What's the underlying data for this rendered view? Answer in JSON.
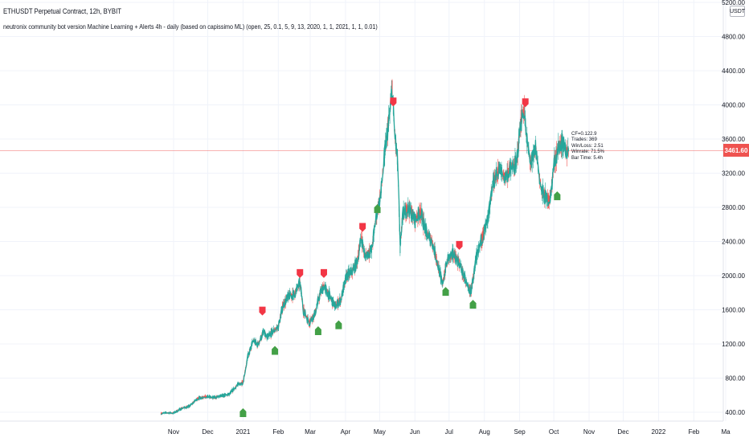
{
  "legend": {
    "title": "ETHUSDT Perpetual Contract, 12h, BYBIT",
    "indicator": "neutronix community bot version Machine Learning + Alerts 4h - daily (based on capissimo ML) (open, 25, 0.1, 5, 9, 13, 2020, 1, 1, 2021, 1, 1, 0.01)"
  },
  "price_axis": {
    "currency": "USDT",
    "last_price": "3461.60"
  },
  "stats": {
    "lines": [
      "CF=0.122.9",
      "Trades: 369",
      "Win/Loss: 2.51",
      "Winrate: 71.5%",
      "Bar Time: 5.4h"
    ]
  },
  "colors": {
    "background": "#ffffff",
    "series": "#26a69a",
    "up_candle": "#26a69a",
    "down_candle": "#ef5350",
    "sell_marker": "#f23645",
    "buy_marker": "#43a047",
    "last_price_line": "#ef5350",
    "axis_text": "#131722",
    "grid": "#f0f3fa"
  },
  "chart_data": {
    "type": "line",
    "title": "ETHUSDT Perpetual Contract, 12h, BYBIT",
    "xlabel": "",
    "ylabel": "",
    "ylim": [
      330,
      5200
    ],
    "grid": true,
    "y_ticks": [
      400,
      800,
      1200,
      1600,
      2000,
      2400,
      2800,
      3200,
      3600,
      4000,
      4400,
      4800,
      5200
    ],
    "y_tick_labels": [
      "400.00",
      "800.00",
      "1200.00",
      "1600.00",
      "2000.00",
      "2400.00",
      "2800.00",
      "3200.00",
      "3600.00",
      "4000.00",
      "4400.00",
      "4800.00",
      "5200.00"
    ],
    "x_ticks": [
      {
        "date": "2020-11-01",
        "label": "Nov"
      },
      {
        "date": "2020-12-01",
        "label": "Dec"
      },
      {
        "date": "2021-01-01",
        "label": "2021"
      },
      {
        "date": "2021-02-01",
        "label": "Feb"
      },
      {
        "date": "2021-03-01",
        "label": "Mar"
      },
      {
        "date": "2021-04-01",
        "label": "Apr"
      },
      {
        "date": "2021-05-01",
        "label": "May"
      },
      {
        "date": "2021-06-01",
        "label": "Jun"
      },
      {
        "date": "2021-07-01",
        "label": "Jul"
      },
      {
        "date": "2021-08-01",
        "label": "Aug"
      },
      {
        "date": "2021-09-01",
        "label": "Sep"
      },
      {
        "date": "2021-10-01",
        "label": "Oct"
      },
      {
        "date": "2021-11-01",
        "label": "Nov"
      },
      {
        "date": "2021-12-01",
        "label": "Dec"
      },
      {
        "date": "2022-01-01",
        "label": "2022"
      },
      {
        "date": "2022-02-01",
        "label": "Feb"
      },
      {
        "date": "2022-03-01",
        "label": "Ma"
      }
    ],
    "last_price": 3461.6,
    "series": [
      {
        "values": [
          [
            "2020-10-21",
            385
          ],
          [
            "2020-10-26",
            395
          ],
          [
            "2020-11-01",
            390
          ],
          [
            "2020-11-08",
            445
          ],
          [
            "2020-11-15",
            470
          ],
          [
            "2020-11-22",
            560
          ],
          [
            "2020-11-29",
            585
          ],
          [
            "2020-12-06",
            570
          ],
          [
            "2020-12-13",
            590
          ],
          [
            "2020-12-20",
            610
          ],
          [
            "2020-12-27",
            720
          ],
          [
            "2021-01-01",
            750
          ],
          [
            "2021-01-05",
            1040
          ],
          [
            "2021-01-10",
            1240
          ],
          [
            "2021-01-14",
            1190
          ],
          [
            "2021-01-19",
            1340
          ],
          [
            "2021-01-22",
            1270
          ],
          [
            "2021-01-26",
            1330
          ],
          [
            "2021-02-01",
            1400
          ],
          [
            "2021-02-05",
            1650
          ],
          [
            "2021-02-10",
            1760
          ],
          [
            "2021-02-15",
            1780
          ],
          [
            "2021-02-20",
            1920
          ],
          [
            "2021-02-23",
            1600
          ],
          [
            "2021-02-28",
            1450
          ],
          [
            "2021-03-05",
            1550
          ],
          [
            "2021-03-10",
            1800
          ],
          [
            "2021-03-13",
            1880
          ],
          [
            "2021-03-18",
            1760
          ],
          [
            "2021-03-23",
            1640
          ],
          [
            "2021-03-28",
            1720
          ],
          [
            "2021-04-02",
            2000
          ],
          [
            "2021-04-07",
            2050
          ],
          [
            "2021-04-11",
            2150
          ],
          [
            "2021-04-15",
            2450
          ],
          [
            "2021-04-18",
            2230
          ],
          [
            "2021-04-24",
            2300
          ],
          [
            "2021-04-28",
            2700
          ],
          [
            "2021-05-02",
            2950
          ],
          [
            "2021-05-06",
            3500
          ],
          [
            "2021-05-10",
            3900
          ],
          [
            "2021-05-12",
            4200
          ],
          [
            "2021-05-14",
            3700
          ],
          [
            "2021-05-17",
            3300
          ],
          [
            "2021-05-19",
            2300
          ],
          [
            "2021-05-21",
            2700
          ],
          [
            "2021-05-26",
            2800
          ],
          [
            "2021-06-01",
            2650
          ],
          [
            "2021-06-06",
            2750
          ],
          [
            "2021-06-11",
            2500
          ],
          [
            "2021-06-16",
            2400
          ],
          [
            "2021-06-20",
            2200
          ],
          [
            "2021-06-25",
            1900
          ],
          [
            "2021-06-30",
            2200
          ],
          [
            "2021-07-05",
            2250
          ],
          [
            "2021-07-10",
            2150
          ],
          [
            "2021-07-15",
            1950
          ],
          [
            "2021-07-20",
            1800
          ],
          [
            "2021-07-25",
            2200
          ],
          [
            "2021-07-30",
            2450
          ],
          [
            "2021-08-04",
            2650
          ],
          [
            "2021-08-09",
            3100
          ],
          [
            "2021-08-14",
            3250
          ],
          [
            "2021-08-19",
            3150
          ],
          [
            "2021-08-24",
            3250
          ],
          [
            "2021-08-29",
            3300
          ],
          [
            "2021-09-02",
            3800
          ],
          [
            "2021-09-05",
            3950
          ],
          [
            "2021-09-07",
            3600
          ],
          [
            "2021-09-11",
            3300
          ],
          [
            "2021-09-15",
            3500
          ],
          [
            "2021-09-20",
            3000
          ],
          [
            "2021-09-24",
            2900
          ],
          [
            "2021-09-28",
            2900
          ],
          [
            "2021-10-01",
            3300
          ],
          [
            "2021-10-05",
            3500
          ],
          [
            "2021-10-08",
            3550
          ],
          [
            "2021-10-12",
            3450
          ],
          [
            "2021-10-14",
            3460
          ]
        ]
      }
    ],
    "markers": [
      {
        "type": "sell",
        "date": "2021-01-18",
        "price": 1580
      },
      {
        "type": "sell",
        "date": "2021-02-20",
        "price": 2020
      },
      {
        "type": "sell",
        "date": "2021-03-13",
        "price": 2020
      },
      {
        "type": "sell",
        "date": "2021-04-16",
        "price": 2560
      },
      {
        "type": "sell",
        "date": "2021-05-13",
        "price": 4030
      },
      {
        "type": "sell",
        "date": "2021-07-10",
        "price": 2350
      },
      {
        "type": "sell",
        "date": "2021-09-06",
        "price": 4020
      },
      {
        "type": "buy",
        "date": "2021-01-01",
        "price": 400
      },
      {
        "type": "buy",
        "date": "2021-01-29",
        "price": 1130
      },
      {
        "type": "buy",
        "date": "2021-03-08",
        "price": 1360
      },
      {
        "type": "buy",
        "date": "2021-03-26",
        "price": 1430
      },
      {
        "type": "buy",
        "date": "2021-04-29",
        "price": 2790
      },
      {
        "type": "buy",
        "date": "2021-06-28",
        "price": 1820
      },
      {
        "type": "buy",
        "date": "2021-07-22",
        "price": 1670
      },
      {
        "type": "buy",
        "date": "2021-10-04",
        "price": 2940
      }
    ]
  }
}
